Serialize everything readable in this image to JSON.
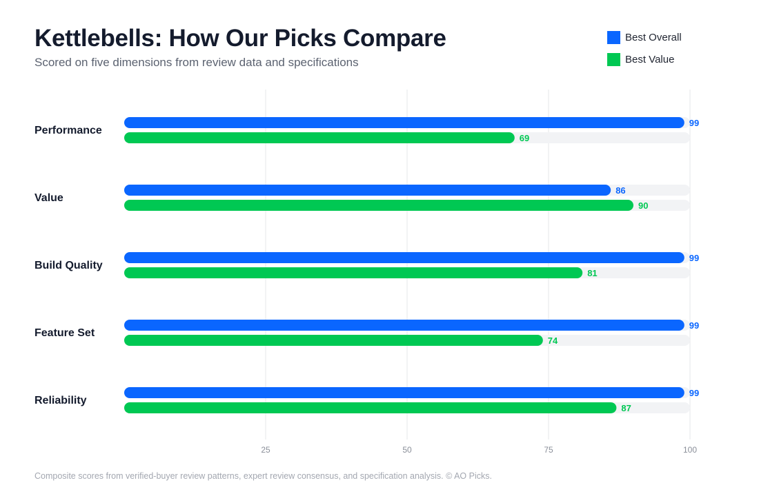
{
  "title": "Kettlebells: How Our Picks Compare",
  "subtitle": "Scored on five dimensions from review data and specifications",
  "footnote": "Composite scores from verified-buyer review patterns, expert review consensus, and specification analysis. © AO Picks.",
  "chart_data": {
    "type": "bar",
    "orientation": "horizontal",
    "categories": [
      "Performance",
      "Value",
      "Build Quality",
      "Feature Set",
      "Reliability"
    ],
    "series": [
      {
        "name": "Best Overall",
        "color": "#0a66ff",
        "values": [
          99,
          86,
          99,
          99,
          99
        ]
      },
      {
        "name": "Best Value",
        "color": "#00c853",
        "values": [
          69,
          90,
          81,
          74,
          87
        ]
      }
    ],
    "xlim": [
      0,
      100
    ],
    "xticks": [
      25,
      50,
      75,
      100
    ],
    "grid": true,
    "legend_position": "top-right",
    "track_color": "#f2f3f5",
    "grid_color": "#e6e7ea"
  }
}
